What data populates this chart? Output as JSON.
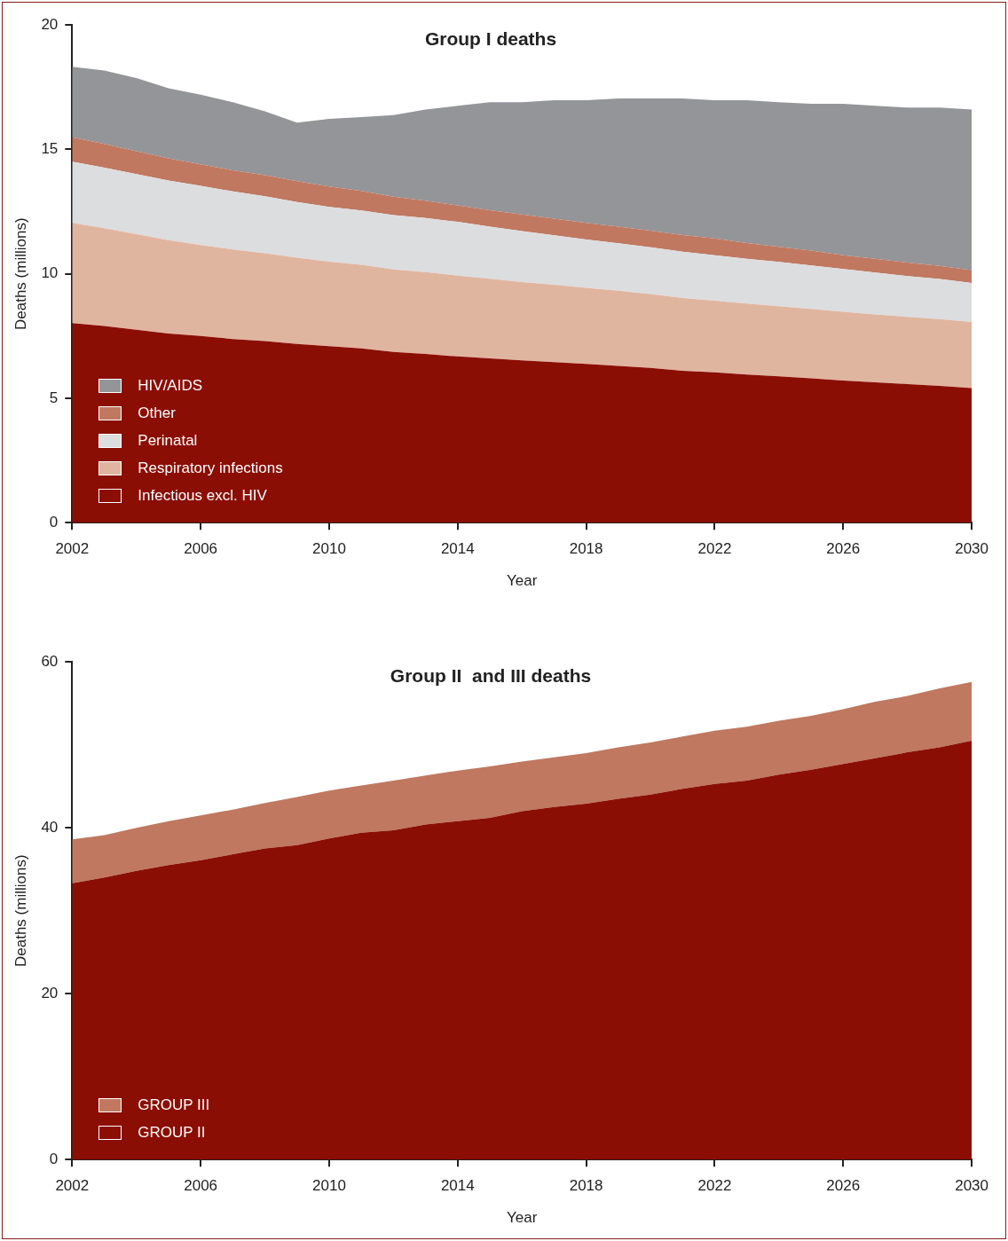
{
  "chart_data": [
    {
      "type": "area",
      "title": "Group I deaths",
      "xlabel": "Year",
      "ylabel": "Deaths (millions)",
      "stacked": true,
      "legend": "bottom left",
      "grid": false,
      "marker": "none",
      "x": [
        2002,
        2003,
        2004,
        2005,
        2006,
        2007,
        2008,
        2009,
        2010,
        2011,
        2012,
        2013,
        2014,
        2015,
        2016,
        2017,
        2018,
        2019,
        2020,
        2021,
        2022,
        2023,
        2024,
        2025,
        2026,
        2027,
        2028,
        2029,
        2030
      ],
      "xlim": [
        2002,
        2030
      ],
      "xticks": [
        2002,
        2006,
        2010,
        2014,
        2018,
        2022,
        2026,
        2030
      ],
      "ylim": [
        0,
        20
      ],
      "yticks": [
        0,
        5,
        10,
        15,
        20
      ],
      "series": [
        {
          "name": "Infectious excl. HIV",
          "color": "#8b0e04",
          "values": [
            8.02,
            7.9,
            7.75,
            7.6,
            7.5,
            7.38,
            7.3,
            7.18,
            7.09,
            7.0,
            6.86,
            6.78,
            6.68,
            6.6,
            6.52,
            6.45,
            6.38,
            6.3,
            6.22,
            6.1,
            6.04,
            5.95,
            5.88,
            5.8,
            5.71,
            5.64,
            5.57,
            5.5,
            5.41
          ]
        },
        {
          "name": "Respiratory infections",
          "color": "#e0b5a0",
          "values": [
            4.03,
            3.93,
            3.84,
            3.75,
            3.66,
            3.6,
            3.53,
            3.47,
            3.4,
            3.36,
            3.32,
            3.29,
            3.25,
            3.2,
            3.15,
            3.11,
            3.06,
            3.02,
            2.97,
            2.93,
            2.88,
            2.85,
            2.82,
            2.79,
            2.76,
            2.73,
            2.7,
            2.68,
            2.65
          ]
        },
        {
          "name": "Perinatal",
          "color": "#dcdddf",
          "values": [
            2.46,
            2.44,
            2.42,
            2.4,
            2.38,
            2.33,
            2.29,
            2.24,
            2.2,
            2.19,
            2.18,
            2.17,
            2.16,
            2.1,
            2.05,
            1.99,
            1.94,
            1.91,
            1.88,
            1.86,
            1.83,
            1.8,
            1.78,
            1.75,
            1.72,
            1.68,
            1.64,
            1.61,
            1.57
          ]
        },
        {
          "name": "Other",
          "color": "#c07860",
          "values": [
            0.98,
            0.95,
            0.92,
            0.89,
            0.86,
            0.85,
            0.84,
            0.83,
            0.82,
            0.78,
            0.74,
            0.7,
            0.66,
            0.66,
            0.67,
            0.67,
            0.67,
            0.67,
            0.67,
            0.67,
            0.67,
            0.64,
            0.61,
            0.59,
            0.56,
            0.55,
            0.54,
            0.53,
            0.52
          ]
        },
        {
          "name": "HIV/AIDS",
          "color": "#939598",
          "values": [
            2.83,
            2.95,
            2.94,
            2.82,
            2.8,
            2.74,
            2.57,
            2.36,
            2.72,
            2.97,
            3.28,
            3.66,
            4.0,
            4.34,
            4.51,
            4.76,
            4.93,
            5.15,
            5.31,
            5.49,
            5.56,
            5.74,
            5.81,
            5.9,
            6.08,
            6.15,
            6.23,
            6.36,
            6.45
          ]
        }
      ]
    },
    {
      "type": "area",
      "title": "Group II  and III deaths",
      "xlabel": "Year",
      "ylabel": "Deaths (millions)",
      "stacked": true,
      "legend": "bottom left",
      "grid": false,
      "marker": "none",
      "x": [
        2002,
        2003,
        2004,
        2005,
        2006,
        2007,
        2008,
        2009,
        2010,
        2011,
        2012,
        2013,
        2014,
        2015,
        2016,
        2017,
        2018,
        2019,
        2020,
        2021,
        2022,
        2023,
        2024,
        2025,
        2026,
        2027,
        2028,
        2029,
        2030
      ],
      "xlim": [
        2002,
        2030
      ],
      "xticks": [
        2002,
        2006,
        2010,
        2014,
        2018,
        2022,
        2026,
        2030
      ],
      "ylim": [
        0,
        60
      ],
      "yticks": [
        0,
        20,
        40,
        60
      ],
      "series": [
        {
          "name": "GROUP II",
          "color": "#8b0e04",
          "values": [
            33.3,
            34.0,
            34.8,
            35.5,
            36.1,
            36.8,
            37.5,
            37.9,
            38.7,
            39.4,
            39.7,
            40.4,
            40.8,
            41.2,
            42.0,
            42.5,
            42.9,
            43.5,
            44.0,
            44.7,
            45.3,
            45.7,
            46.4,
            47.0,
            47.7,
            48.4,
            49.1,
            49.7,
            50.5
          ]
        },
        {
          "name": "GROUP III",
          "color": "#c07860",
          "values": [
            5.3,
            5.1,
            5.2,
            5.3,
            5.4,
            5.4,
            5.5,
            5.8,
            5.8,
            5.7,
            6.0,
            5.9,
            6.1,
            6.2,
            6.0,
            6.0,
            6.1,
            6.2,
            6.3,
            6.3,
            6.4,
            6.5,
            6.5,
            6.5,
            6.6,
            6.8,
            6.8,
            7.1,
            7.1
          ]
        }
      ]
    }
  ]
}
